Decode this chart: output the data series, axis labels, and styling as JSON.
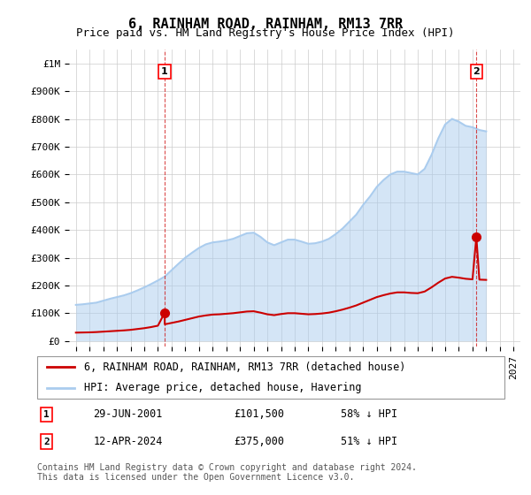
{
  "title": "6, RAINHAM ROAD, RAINHAM, RM13 7RR",
  "subtitle": "Price paid vs. HM Land Registry's House Price Index (HPI)",
  "legend_label_red": "6, RAINHAM ROAD, RAINHAM, RM13 7RR (detached house)",
  "legend_label_blue": "HPI: Average price, detached house, Havering",
  "footnote": "Contains HM Land Registry data © Crown copyright and database right 2024.\nThis data is licensed under the Open Government Licence v3.0.",
  "annotation1_label": "1",
  "annotation1_date": "29-JUN-2001",
  "annotation1_price": "£101,500",
  "annotation1_hpi": "58% ↓ HPI",
  "annotation2_label": "2",
  "annotation2_date": "12-APR-2024",
  "annotation2_price": "£375,000",
  "annotation2_hpi": "51% ↓ HPI",
  "sale1_year": 2001.49,
  "sale1_price": 101500,
  "sale2_year": 2024.28,
  "sale2_price": 375000,
  "hpi_years": [
    1995,
    1995.5,
    1996,
    1996.5,
    1997,
    1997.5,
    1998,
    1998.5,
    1999,
    1999.5,
    2000,
    2000.5,
    2001,
    2001.5,
    2002,
    2002.5,
    2003,
    2003.5,
    2004,
    2004.5,
    2005,
    2005.5,
    2006,
    2006.5,
    2007,
    2007.5,
    2008,
    2008.5,
    2009,
    2009.5,
    2010,
    2010.5,
    2011,
    2011.5,
    2012,
    2012.5,
    2013,
    2013.5,
    2014,
    2014.5,
    2015,
    2015.5,
    2016,
    2016.5,
    2017,
    2017.5,
    2018,
    2018.5,
    2019,
    2019.5,
    2020,
    2020.5,
    2021,
    2021.5,
    2022,
    2022.5,
    2023,
    2023.5,
    2024,
    2024.5,
    2025
  ],
  "hpi_values": [
    130000,
    132000,
    135000,
    138000,
    145000,
    152000,
    158000,
    164000,
    172000,
    182000,
    193000,
    205000,
    218000,
    232000,
    255000,
    278000,
    300000,
    318000,
    335000,
    348000,
    355000,
    358000,
    362000,
    368000,
    378000,
    388000,
    390000,
    375000,
    355000,
    345000,
    355000,
    365000,
    365000,
    358000,
    350000,
    352000,
    358000,
    368000,
    385000,
    405000,
    430000,
    455000,
    490000,
    520000,
    555000,
    580000,
    600000,
    610000,
    610000,
    605000,
    600000,
    620000,
    670000,
    730000,
    780000,
    800000,
    790000,
    775000,
    770000,
    760000,
    755000
  ],
  "red_years": [
    1995,
    1995.5,
    1996,
    1996.5,
    1997,
    1997.5,
    1998,
    1998.5,
    1999,
    1999.5,
    2000,
    2000.5,
    2001,
    2001.49,
    2001.5,
    2002,
    2002.5,
    2003,
    2003.5,
    2004,
    2004.5,
    2005,
    2005.5,
    2006,
    2006.5,
    2007,
    2007.5,
    2008,
    2008.5,
    2009,
    2009.5,
    2010,
    2010.5,
    2011,
    2011.5,
    2012,
    2012.5,
    2013,
    2013.5,
    2014,
    2014.5,
    2015,
    2015.5,
    2016,
    2016.5,
    2017,
    2017.5,
    2018,
    2018.5,
    2019,
    2019.5,
    2020,
    2020.5,
    2021,
    2021.5,
    2022,
    2022.5,
    2023,
    2023.5,
    2024,
    2024.28,
    2024.5,
    2025
  ],
  "red_values": [
    30000,
    30500,
    31000,
    32000,
    33500,
    35000,
    36500,
    38000,
    40000,
    43000,
    46000,
    50000,
    55000,
    101500,
    60000,
    65000,
    70000,
    76000,
    82000,
    88000,
    92000,
    95000,
    96000,
    98000,
    100000,
    103000,
    106000,
    107000,
    102000,
    96000,
    93000,
    97000,
    100000,
    100000,
    98000,
    96000,
    97000,
    99000,
    102000,
    107000,
    113000,
    120000,
    128000,
    138000,
    148000,
    158000,
    165000,
    171000,
    175000,
    175000,
    173000,
    172000,
    178000,
    193000,
    210000,
    225000,
    231000,
    228000,
    224000,
    222000,
    375000,
    221000,
    220000
  ],
  "xlim_left": 1994.5,
  "xlim_right": 2027.5,
  "ylim_bottom": -20000,
  "ylim_top": 1050000,
  "color_red": "#cc0000",
  "color_blue": "#aaccee",
  "color_grid": "#cccccc",
  "color_background": "#ffffff",
  "title_fontsize": 11,
  "subtitle_fontsize": 9,
  "tick_fontsize": 8,
  "legend_fontsize": 8.5,
  "footnote_fontsize": 7
}
